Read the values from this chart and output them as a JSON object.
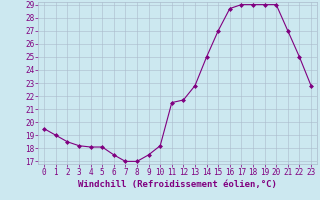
{
  "x": [
    0,
    1,
    2,
    3,
    4,
    5,
    6,
    7,
    8,
    9,
    10,
    11,
    12,
    13,
    14,
    15,
    16,
    17,
    18,
    19,
    20,
    21,
    22,
    23
  ],
  "y": [
    19.5,
    19.0,
    18.5,
    18.2,
    18.1,
    18.1,
    17.5,
    17.0,
    17.0,
    17.5,
    18.2,
    21.5,
    21.7,
    22.8,
    25.0,
    27.0,
    28.7,
    29.0,
    29.0,
    29.0,
    29.0,
    27.0,
    25.0,
    22.8
  ],
  "xlabel": "Windchill (Refroidissement éolien,°C)",
  "ylim_min": 17,
  "ylim_max": 29,
  "xlim_min": -0.5,
  "xlim_max": 23.5,
  "yticks": [
    17,
    18,
    19,
    20,
    21,
    22,
    23,
    24,
    25,
    26,
    27,
    28,
    29
  ],
  "xticks": [
    0,
    1,
    2,
    3,
    4,
    5,
    6,
    7,
    8,
    9,
    10,
    11,
    12,
    13,
    14,
    15,
    16,
    17,
    18,
    19,
    20,
    21,
    22,
    23
  ],
  "line_color": "#800080",
  "marker_color": "#800080",
  "bg_color": "#cce8f0",
  "grid_color": "#aabbcc",
  "xlabel_color": "#800080",
  "tick_color": "#800080",
  "font_size_xlabel": 6.5,
  "font_size_ticks": 5.5,
  "linewidth": 0.8,
  "markersize": 2.0
}
